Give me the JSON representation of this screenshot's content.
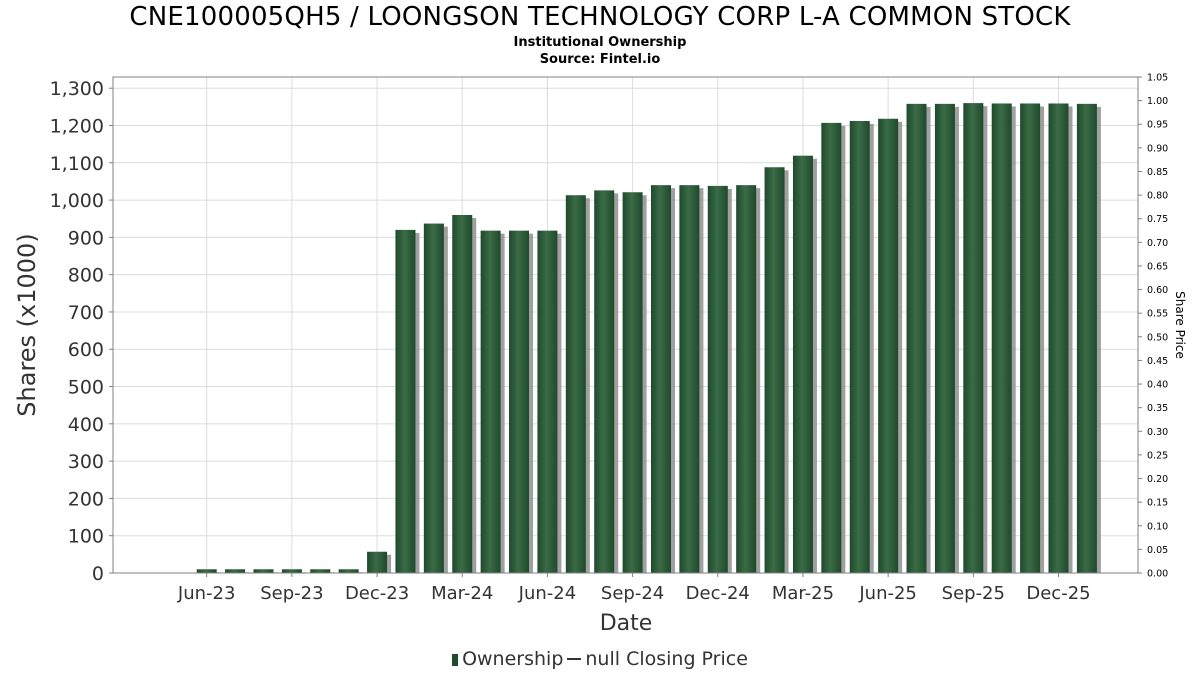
{
  "title": "CNE100005QH5 / LOONGSON TECHNOLOGY CORP L-A COMMON STOCK",
  "subtitle": "Institutional Ownership",
  "source": "Source: Fintel.io",
  "colors": {
    "bar": "#1f4a2c",
    "bar_highlight": "#3a6b46",
    "bar_shadow": "#8f8f8f",
    "grid": "#dcdcdc",
    "axis": "#808080"
  },
  "legend": {
    "ownership_label": "Ownership",
    "price_label": "null Closing Price"
  },
  "chart_data": {
    "type": "bar",
    "title": "CNE100005QH5 / LOONGSON TECHNOLOGY CORP L-A COMMON STOCK",
    "subtitle": "Institutional Ownership",
    "xlabel": "Date",
    "ylabel": "Shares (x1000)",
    "y2label": "Share Price",
    "ylim": [
      0,
      1330
    ],
    "y2lim": [
      0,
      1.05
    ],
    "yticks": [
      "0",
      "100",
      "200",
      "300",
      "400",
      "500",
      "600",
      "700",
      "800",
      "900",
      "1,000",
      "1,100",
      "1,200",
      "1,300"
    ],
    "ytick_values": [
      0,
      100,
      200,
      300,
      400,
      500,
      600,
      700,
      800,
      900,
      1000,
      1100,
      1200,
      1300
    ],
    "y2ticks": [
      "0.00",
      "0.05",
      "0.10",
      "0.15",
      "0.20",
      "0.25",
      "0.30",
      "0.35",
      "0.40",
      "0.45",
      "0.50",
      "0.55",
      "0.60",
      "0.65",
      "0.70",
      "0.75",
      "0.80",
      "0.85",
      "0.90",
      "0.95",
      "1.00",
      "1.05"
    ],
    "xticks": [
      "Jun-23",
      "Sep-23",
      "Dec-23",
      "Mar-24",
      "Jun-24",
      "Sep-24",
      "Dec-24",
      "Mar-25",
      "Jun-25",
      "Sep-25",
      "Dec-25"
    ],
    "xtick_months": [
      1.5,
      4.5,
      7.5,
      10.5,
      13.5,
      16.5,
      19.5,
      22.5,
      25.5,
      28.5,
      31.5
    ],
    "x_range_months": [
      -1.8,
      34.3
    ],
    "bar_months": [
      1.5,
      2.5,
      3.5,
      4.5,
      5.5,
      6.5,
      7.5,
      8.5,
      9.5,
      10.5,
      11.5,
      12.5,
      13.5,
      14.5,
      15.5,
      16.5,
      17.5,
      18.5,
      19.5,
      20.5,
      21.5,
      22.5,
      23.5,
      24.5,
      25.5,
      26.5,
      27.5,
      28.5,
      29.5,
      30.5,
      31.5,
      32.5
    ],
    "series": [
      {
        "name": "Ownership",
        "values": [
          10,
          10,
          10,
          10,
          10,
          10,
          57,
          920,
          937,
          960,
          918,
          918,
          918,
          1013,
          1026,
          1021,
          1040,
          1040,
          1038,
          1040,
          1088,
          1119,
          1207,
          1212,
          1218,
          1258,
          1258,
          1260,
          1259,
          1259,
          1259,
          1258
        ]
      },
      {
        "name": "null Closing Price",
        "values": []
      }
    ],
    "grid": true,
    "legend_position": "bottom"
  }
}
